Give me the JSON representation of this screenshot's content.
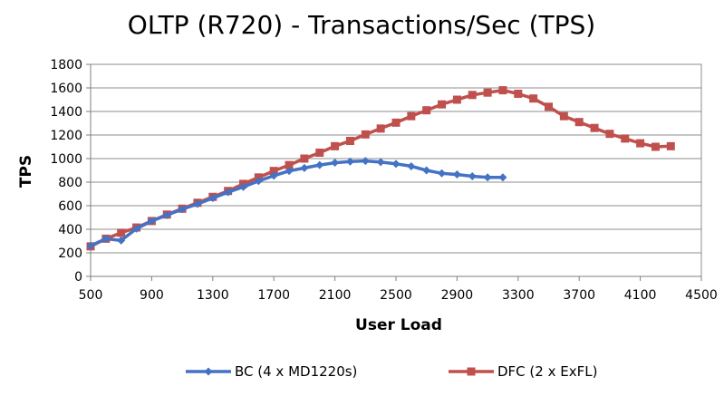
{
  "chart_data": {
    "type": "line",
    "title": "OLTP (R720) - Transactions/Sec (TPS)",
    "xlabel": "User Load",
    "ylabel": "TPS",
    "xlim": [
      500,
      4500
    ],
    "ylim": [
      0,
      1800
    ],
    "x_ticks": [
      "500",
      "900",
      "1300",
      "1700",
      "2100",
      "2500",
      "2900",
      "3300",
      "3700",
      "4100",
      "4500"
    ],
    "y_ticks": [
      "0",
      "200",
      "400",
      "600",
      "800",
      "1000",
      "1200",
      "1400",
      "1600",
      "1800"
    ],
    "grid": true,
    "legend_position": "bottom",
    "series": [
      {
        "name": "BC (4 x MD1220s)",
        "color": "#4472C4",
        "marker": "diamond",
        "x": [
          500,
          600,
          700,
          800,
          900,
          1000,
          1100,
          1200,
          1300,
          1400,
          1500,
          1600,
          1700,
          1800,
          1900,
          2000,
          2100,
          2200,
          2300,
          2400,
          2500,
          2600,
          2700,
          2800,
          2900,
          3000,
          3100,
          3200
        ],
        "y": [
          260,
          320,
          305,
          405,
          470,
          520,
          570,
          615,
          665,
          715,
          760,
          810,
          855,
          895,
          920,
          945,
          965,
          975,
          980,
          970,
          955,
          935,
          900,
          875,
          865,
          850,
          840,
          840
        ]
      },
      {
        "name": "DFC (2 x ExFL)",
        "color": "#C0504D",
        "marker": "square",
        "x": [
          500,
          600,
          700,
          800,
          900,
          1000,
          1100,
          1200,
          1300,
          1400,
          1500,
          1600,
          1700,
          1800,
          1900,
          2000,
          2100,
          2200,
          2300,
          2400,
          2500,
          2600,
          2700,
          2800,
          2900,
          3000,
          3100,
          3200,
          3300,
          3400,
          3500,
          3600,
          3700,
          3800,
          3900,
          4000,
          4100,
          4200,
          4300
        ],
        "y": [
          255,
          320,
          370,
          415,
          470,
          525,
          575,
          625,
          675,
          725,
          785,
          840,
          895,
          945,
          1000,
          1050,
          1105,
          1150,
          1205,
          1255,
          1305,
          1360,
          1410,
          1460,
          1500,
          1540,
          1560,
          1580,
          1550,
          1510,
          1440,
          1360,
          1310,
          1260,
          1210,
          1170,
          1130,
          1100,
          1105
        ]
      }
    ]
  }
}
